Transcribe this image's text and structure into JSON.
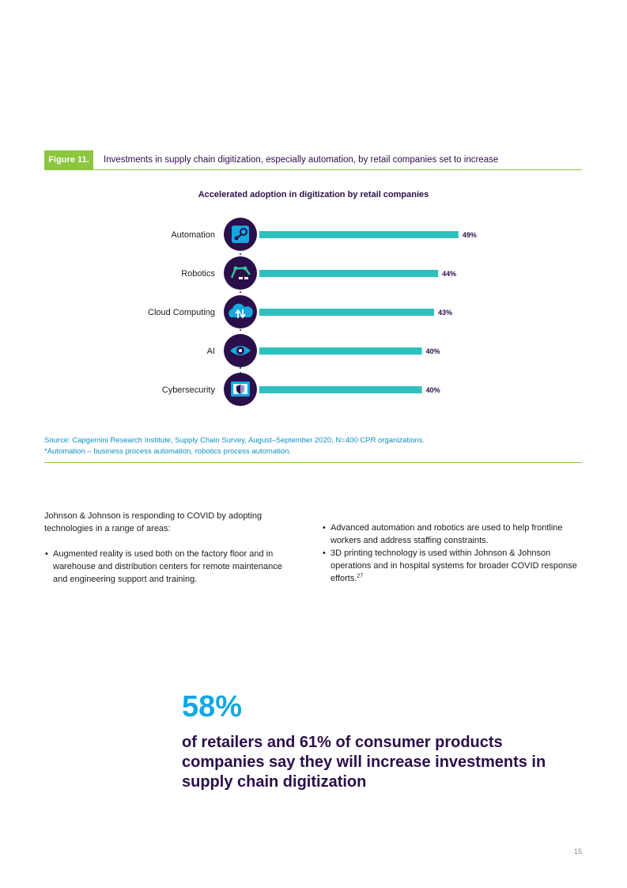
{
  "figure": {
    "tag": "Figure 11.",
    "title": "Investments in supply chain digitization, especially automation, by retail companies set to increase"
  },
  "chart_data": {
    "type": "bar",
    "title": "Accelerated adoption in digitization by retail companies",
    "orientation": "horizontal",
    "categories": [
      "Automation",
      "Robotics",
      "Cloud Computing",
      "AI",
      "Cybersecurity"
    ],
    "values": [
      49,
      44,
      43,
      40,
      40
    ],
    "value_labels": [
      "49%",
      "44%",
      "43%",
      "40%",
      "40%"
    ],
    "icons": [
      "steam-automation-icon",
      "robot-arm-icon",
      "cloud-icon",
      "eye-icon",
      "shield-screen-icon"
    ],
    "bar_color": "#2fbfbf",
    "icon_circle_color": "#2a0f4a",
    "icon_accent_color": "#14a8de",
    "icon_accent2_color": "#3dbfa0"
  },
  "source": {
    "line1": "Source: Capgemini Research Institute, Supply Chain Survey, August–September 2020, N=400 CPR organizations.",
    "line2": "*Automation – business process automation, robotics process automation."
  },
  "left_column": {
    "intro": "Johnson & Johnson is responding to COVID by adopting technologies in a range of areas:",
    "bullets": [
      "Augmented reality is used both on the factory floor and in warehouse and distribution centers for remote maintenance and engineering support and training."
    ]
  },
  "right_column": {
    "bullets": [
      "Advanced automation and robotics are used to help frontline workers and address staffing constraints.",
      "3D printing technology is used within Johnson & Johnson operations and in hospital systems for broader COVID response efforts."
    ],
    "footnote": "27"
  },
  "callout": {
    "number": "58%",
    "text": "of retailers and 61% of consumer products companies say they will increase investments in supply chain digitization"
  },
  "page_number": "15"
}
